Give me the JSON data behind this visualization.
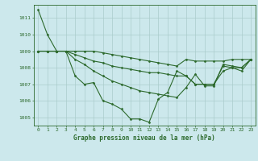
{
  "title": "Graphe pression niveau de la mer (hPa)",
  "xlabel_hours": [
    0,
    1,
    2,
    3,
    4,
    5,
    6,
    7,
    8,
    9,
    10,
    11,
    12,
    13,
    14,
    15,
    16,
    17,
    18,
    19,
    20,
    21,
    22,
    23
  ],
  "series": [
    [
      1011.5,
      1010.0,
      1009.0,
      1009.0,
      1007.5,
      1007.0,
      1007.1,
      1006.0,
      1005.8,
      1005.5,
      1004.9,
      1004.9,
      1004.7,
      1006.1,
      1006.5,
      1007.8,
      1007.5,
      1007.0,
      1007.0,
      1007.0,
      1008.1,
      1008.0,
      1008.0,
      1008.5
    ],
    [
      1009.0,
      1009.0,
      1009.0,
      1009.0,
      1009.0,
      1009.0,
      1009.0,
      1008.9,
      1008.8,
      1008.7,
      1008.6,
      1008.5,
      1008.4,
      1008.3,
      1008.2,
      1008.1,
      1008.5,
      1008.4,
      1008.4,
      1008.4,
      1008.4,
      1008.5,
      1008.5,
      1008.5
    ],
    [
      1009.0,
      1009.0,
      1009.0,
      1009.0,
      1008.8,
      1008.6,
      1008.4,
      1008.3,
      1008.1,
      1008.0,
      1007.9,
      1007.8,
      1007.7,
      1007.7,
      1007.6,
      1007.5,
      1007.5,
      1007.0,
      1007.0,
      1007.0,
      1007.8,
      1008.0,
      1007.8,
      1008.5
    ],
    [
      1009.0,
      1009.0,
      1009.0,
      1009.0,
      1008.5,
      1008.2,
      1007.8,
      1007.5,
      1007.2,
      1007.0,
      1006.8,
      1006.6,
      1006.5,
      1006.4,
      1006.3,
      1006.2,
      1006.8,
      1007.6,
      1006.9,
      1006.9,
      1008.2,
      1008.1,
      1008.0,
      1008.5
    ]
  ],
  "line_color": "#2d6a2d",
  "marker": "D",
  "markersize": 1.5,
  "linewidth": 0.8,
  "bg_color": "#cce8ec",
  "grid_color": "#aacccc",
  "ylim": [
    1004.5,
    1011.8
  ],
  "yticks": [
    1005,
    1006,
    1007,
    1008,
    1009,
    1010,
    1011
  ],
  "tick_fontsize": 4.5,
  "label_fontsize": 5.5
}
